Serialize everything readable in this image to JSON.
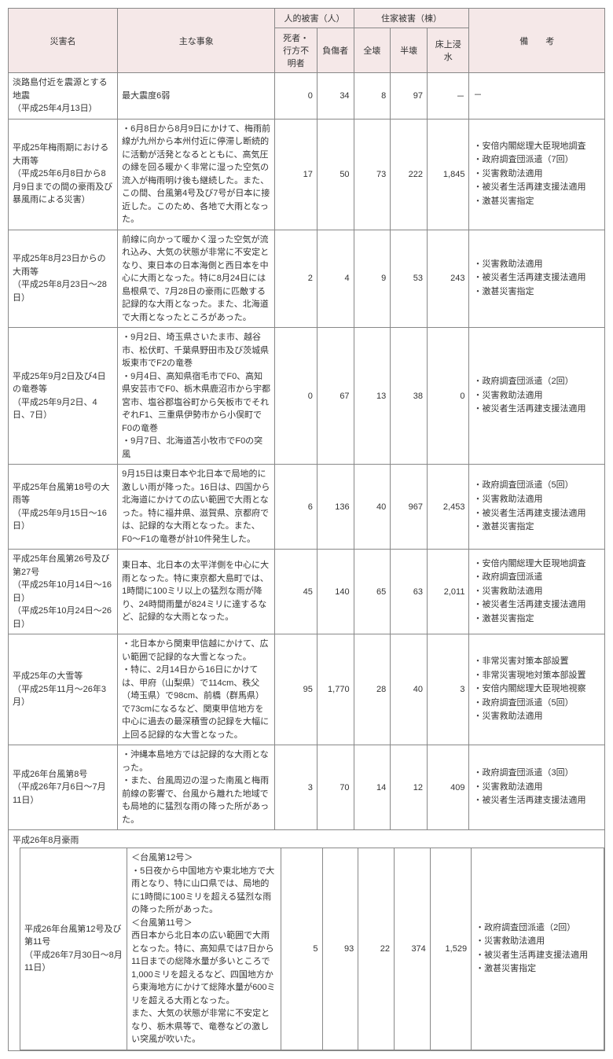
{
  "headers": {
    "name": "災害名",
    "desc": "主な事象",
    "human_group": "人的被害（人）",
    "house_group": "住家被害（棟）",
    "remarks": "備　　考",
    "dead": "死者・行方不明者",
    "injured": "負傷者",
    "full": "全壊",
    "half": "半壊",
    "flood": "床上浸水"
  },
  "rows": [
    {
      "name": "淡路島付近を震源とする地震\n（平成25年4月13日）",
      "desc": "最大震度6弱",
      "dead": "0",
      "injured": "34",
      "full": "8",
      "half": "97",
      "flood": "－",
      "remarks_plain": "－"
    },
    {
      "name": "平成25年梅雨期における大雨等\n（平成25年6月8日から8月9日までの間の豪雨及び暴風雨による災害）",
      "desc": "・6月8日から8月9日にかけて、梅雨前線が九州から本州付近に停滞し断続的に活動が活発となるとともに、高気圧の縁を回る暖かく非常に湿った空気の流入が梅雨明け後も継続した。また、この間、台風第4号及び7号が日本に接近した。このため、各地で大雨となった。",
      "dead": "17",
      "injured": "50",
      "full": "73",
      "half": "222",
      "flood": "1,845",
      "remarks": [
        "安倍内閣総理大臣現地調査",
        "政府調査団派遣（7回）",
        "災害救助法適用",
        "被災者生活再建支援法適用",
        "激甚災害指定"
      ]
    },
    {
      "name": "平成25年8月23日からの大雨等\n（平成25年8月23日〜28日）",
      "desc": "前線に向かって暖かく湿った空気が流れ込み、大気の状態が非常に不安定となり、東日本の日本海側と西日本を中心に大雨となった。特に8月24日には島根県で、7月28日の豪雨に匹敵する記録的な大雨となった。また、北海道で大雨となったところがあった。",
      "dead": "2",
      "injured": "4",
      "full": "9",
      "half": "53",
      "flood": "243",
      "remarks": [
        "災害救助法適用",
        "被災者生活再建支援法適用",
        "激甚災害指定"
      ]
    },
    {
      "name": "平成25年9月2日及び4日の竜巻等\n（平成25年9月2日、4日、7日）",
      "desc": "・9月2日、埼玉県さいたま市、越谷市、松伏町、千葉県野田市及び茨城県坂東市でF2の竜巻\n・9月4日、高知県宿毛市でF0、高知県安芸市でF0、栃木県鹿沼市から宇都宮市、塩谷郡塩谷町から矢板市でそれぞれF1、三重県伊勢市から小俣町でF0の竜巻\n・9月7日、北海道苫小牧市でF0の突風",
      "dead": "0",
      "injured": "67",
      "full": "13",
      "half": "38",
      "flood": "0",
      "remarks": [
        "政府調査団派遣（2回）",
        "災害救助法適用",
        "被災者生活再建支援法適用"
      ]
    },
    {
      "name": "平成25年台風第18号の大雨等\n（平成25年9月15日〜16日）",
      "desc": "9月15日は東日本や北日本で局地的に激しい雨が降った。16日は、四国から北海道にかけての広い範囲で大雨となった。特に福井県、滋賀県、京都府では、記録的な大雨となった。また、F0〜F1の竜巻が計10件発生した。",
      "dead": "6",
      "injured": "136",
      "full": "40",
      "half": "967",
      "flood": "2,453",
      "remarks": [
        "政府調査団派遣（5回）",
        "災害救助法適用",
        "被災者生活再建支援法適用",
        "激甚災害指定"
      ]
    },
    {
      "name": "平成25年台風第26号及び第27号\n（平成25年10月14日〜16日）\n（平成25年10月24日〜26日）",
      "desc": "東日本、北日本の太平洋側を中心に大雨となった。特に東京都大島町では、1時間に100ミリ以上の猛烈な雨が降り、24時間雨量が824ミリに達するなど、記録的な大雨となった。",
      "dead": "45",
      "injured": "140",
      "full": "65",
      "half": "63",
      "flood": "2,011",
      "remarks": [
        "安倍内閣総理大臣現地調査",
        "政府調査団派遣",
        "災害救助法適用",
        "被災者生活再建支援法適用",
        "激甚災害指定"
      ]
    },
    {
      "name": "平成25年の大雪等\n（平成25年11月〜26年3月）",
      "desc": "・北日本から関東甲信越にかけて、広い範囲で記録的な大雪となった。\n・特に、2月14日から16日にかけては、甲府（山梨県）で114cm、秩父（埼玉県）で98cm、前橋（群馬県）で73cmになるなど、関東甲信地方を中心に過去の最深積雪の記録を大幅に上回る記録的な大雪となった。",
      "dead": "95",
      "injured": "1,770",
      "full": "28",
      "half": "40",
      "flood": "3",
      "remarks": [
        "非常災害対策本部設置",
        "非常災害現地対策本部設置",
        "安倍内閣総理大臣現地視察",
        "政府調査団派遣（5回）",
        "災害救助法適用"
      ]
    },
    {
      "name": "平成26年台風第8号\n（平成26年7月6日〜7月11日）",
      "desc": "・沖縄本島地方では記録的な大雨となった。\n・また、台風周辺の湿った南風と梅雨前線の影響で、台風から離れた地域でも局地的に猛烈な雨の降った所があった。",
      "dead": "3",
      "injured": "70",
      "full": "14",
      "half": "12",
      "flood": "409",
      "remarks": [
        "政府調査団派遣（3回）",
        "災害救助法適用",
        "被災者生活再建支援法適用"
      ]
    }
  ],
  "section_label": "平成26年8月豪雨",
  "nested_row": {
    "name": "平成26年台風第12号及び第11号\n（平成26年7月30日〜8月11日）",
    "desc": "＜台風第12号＞\n・5日夜から中国地方や東北地方で大雨となり、特に山口県では、局地的に1時間に100ミリを超える猛烈な雨の降った所があった。\n＜台風第11号＞\n西日本から北日本の広い範囲で大雨となった。特に、高知県では7日から11日までの総降水量が多いところで1,000ミリを超えるなど、四国地方から東海地方にかけて総降水量が600ミリを超える大雨となった。\nまた、大気の状態が非常に不安定となり、栃木県等で、竜巻などの激しい突風が吹いた。",
    "dead": "5",
    "injured": "93",
    "full": "22",
    "half": "374",
    "flood": "1,529",
    "remarks": [
      "政府調査団派遣（2回）",
      "災害救助法適用",
      "被災者生活再建支援法適用",
      "激甚災害指定"
    ]
  }
}
